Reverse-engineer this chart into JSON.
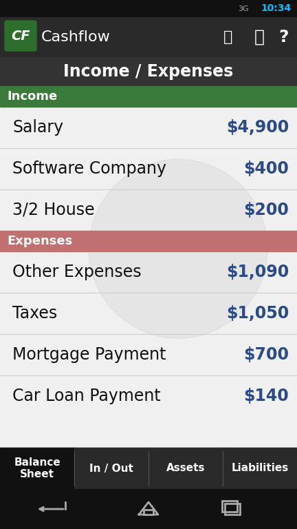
{
  "bg_color": "#1a1a1a",
  "status_bar_color": "#111111",
  "status_bar_height": 0.038,
  "status_time": "10:34",
  "status_signal": "3G",
  "app_bar_color": "#2a2a2a",
  "app_bar_height": 0.085,
  "app_title": "Cashflow",
  "cf_logo_bg": "#2d6e2d",
  "cf_logo_text": "CF",
  "header_color": "#2a2a2a",
  "header_text": "Income / Expenses",
  "header_text_color": "#ffffff",
  "income_section_color": "#3a7a3a",
  "income_section_text": "Income",
  "income_section_text_color": "#ffffff",
  "expenses_section_color": "#c07070",
  "expenses_section_text": "Expenses",
  "expenses_section_text_color": "#ffffff",
  "list_bg_color": "#f0f0f0",
  "list_item_color": "#e8e8e8",
  "list_separator_color": "#cccccc",
  "value_text_color": "#2a4a8a",
  "label_text_color": "#111111",
  "income_items": [
    {
      "label": "Salary",
      "value": "$4,900"
    },
    {
      "label": "Software Company",
      "value": "$400"
    },
    {
      "label": "3/2 House",
      "value": "$200"
    }
  ],
  "expense_items": [
    {
      "label": "Other Expenses",
      "value": "$1,090"
    },
    {
      "label": "Taxes",
      "value": "$1,050"
    },
    {
      "label": "Mortgage Payment",
      "value": "$700"
    },
    {
      "label": "Car Loan Payment",
      "value": "$140"
    }
  ],
  "tab_bar_color": "#222222",
  "tab_bar_height": 0.085,
  "tabs": [
    "Balance\nSheet",
    "In / Out",
    "Assets",
    "Liabilities"
  ],
  "tab_active_color": "#111111",
  "tab_inactive_color": "#2a2a2a",
  "tab_text_color": "#ffffff",
  "nav_bar_color": "#111111",
  "nav_bar_height": 0.07,
  "watermark_color": "#cccccc",
  "watermark_alpha": 0.3
}
